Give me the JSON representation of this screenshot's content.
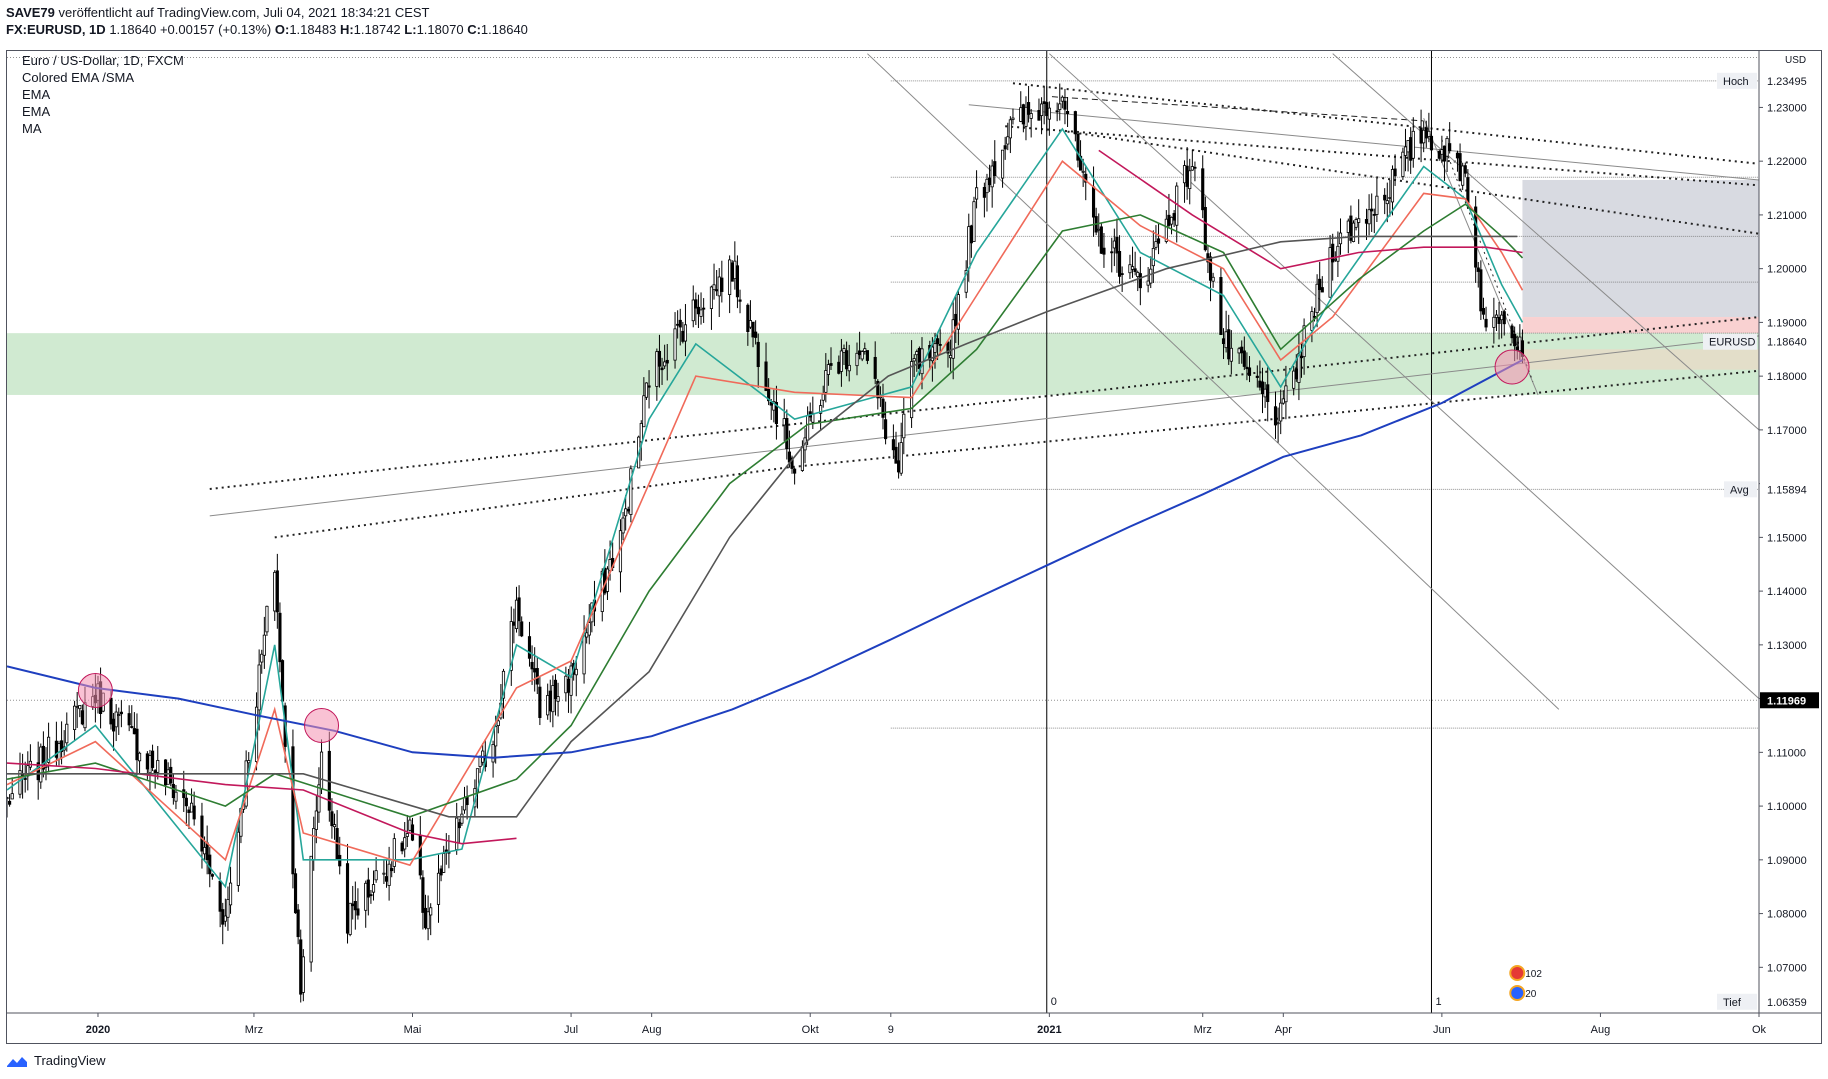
{
  "header": {
    "publisher": "SAVE79",
    "published_text": "veröffentlicht auf TradingView.com, Juli 04, 2021 18:34:21 CEST",
    "symbol": "FX:EURUSD, 1D",
    "last": "1.18640",
    "change": "+0.00157 (+0.13%)",
    "o_label": "O:",
    "o": "1.18483",
    "h_label": "H:",
    "h": "1.18742",
    "l_label": "L:",
    "l": "1.18070",
    "c_label": "C:",
    "c": "1.18640"
  },
  "legend": {
    "title": "Euro / US-Dollar, 1D, FXCM",
    "indicators": [
      "Colored EMA /SMA",
      "EMA",
      "EMA",
      "MA"
    ]
  },
  "footer": {
    "brand": "TradingView"
  },
  "colors": {
    "bull_candle": "#ffffff",
    "bear_candle": "#000000",
    "ema_teal": "#26a69a",
    "ema_salmon": "#f06a5a",
    "ema_green": "#2e7d32",
    "sma_crimson": "#c2185b",
    "sma_gray": "#555555",
    "sma_blue": "#1e3fbf",
    "zone_green": "#c8e6c9",
    "zone_gray": "#d1d4dc",
    "zone_red": "#f8c9c9",
    "highlight_circle": "#f48fb1"
  },
  "chart_data": {
    "type": "candlestick",
    "symbol": "EURUSD",
    "timeframe": "1D",
    "currency": "USD",
    "ylim": [
      1.0615,
      1.2405
    ],
    "y_ticks": [
      1.07,
      1.08,
      1.09,
      1.1,
      1.11,
      1.12,
      1.13,
      1.14,
      1.15,
      1.16,
      1.17,
      1.18,
      1.19,
      1.2,
      1.21,
      1.22,
      1.23
    ],
    "y_tick_labels": [
      "1.07000",
      "1.08000",
      "1.09000",
      "1.10000",
      "1.11000",
      "",
      "1.13000",
      "1.14000",
      "1.15000",
      "",
      "1.17000",
      "1.18000",
      "1.19000",
      "1.20000",
      "1.21000",
      "1.22000",
      "1.23000"
    ],
    "x_range": [
      "2019-11-27",
      "2021-10-01"
    ],
    "x_ticks": [
      {
        "date": "2020-01-01",
        "label": "2020"
      },
      {
        "date": "2020-03-01",
        "label": "Mrz"
      },
      {
        "date": "2020-05-01",
        "label": "Mai"
      },
      {
        "date": "2020-07-01",
        "label": "Jul"
      },
      {
        "date": "2020-08-01",
        "label": "Aug"
      },
      {
        "date": "2020-10-01",
        "label": "Okt"
      },
      {
        "date": "2020-11-01",
        "label": "9"
      },
      {
        "date": "2021-01-01",
        "label": "2021"
      },
      {
        "date": "2021-03-01",
        "label": "Mrz"
      },
      {
        "date": "2021-04-01",
        "label": "Apr"
      },
      {
        "date": "2021-06-01",
        "label": "Jun"
      },
      {
        "date": "2021-08-01",
        "label": "Aug"
      },
      {
        "date": "2021-10-01",
        "label": "Ok"
      }
    ],
    "price_labels": [
      {
        "label": "Hoch",
        "value": "1.23495",
        "y": 1.23495
      },
      {
        "label": "EURUSD",
        "value": "1.18640",
        "y": 1.1864
      },
      {
        "label": "Avg",
        "value": "1.15894",
        "y": 1.15894
      },
      {
        "label": "",
        "value": "1.11969",
        "y": 1.11969
      },
      {
        "label": "Tief",
        "value": "1.06359",
        "y": 1.06359
      }
    ],
    "session_markers": [
      {
        "date": "2020-12-31",
        "label": "0"
      },
      {
        "date": "2021-05-28",
        "label": "1"
      }
    ],
    "event_badges": [
      "102",
      "20"
    ],
    "close_anchors": [
      [
        "2019-11-27",
        1.101
      ],
      [
        "2019-12-10",
        1.108
      ],
      [
        "2019-12-31",
        1.121
      ],
      [
        "2020-01-20",
        1.109
      ],
      [
        "2020-02-05",
        1.1
      ],
      [
        "2020-02-19",
        1.079
      ],
      [
        "2020-03-09",
        1.145
      ],
      [
        "2020-03-13",
        1.11
      ],
      [
        "2020-03-19",
        1.068
      ],
      [
        "2020-03-27",
        1.11
      ],
      [
        "2020-04-06",
        1.079
      ],
      [
        "2020-04-30",
        1.095
      ],
      [
        "2020-05-06",
        1.079
      ],
      [
        "2020-05-20",
        1.098
      ],
      [
        "2020-06-01",
        1.113
      ],
      [
        "2020-06-10",
        1.138
      ],
      [
        "2020-06-19",
        1.118
      ],
      [
        "2020-07-01",
        1.124
      ],
      [
        "2020-07-21",
        1.152
      ],
      [
        "2020-07-31",
        1.18
      ],
      [
        "2020-08-18",
        1.193
      ],
      [
        "2020-09-01",
        1.2
      ],
      [
        "2020-09-25",
        1.163
      ],
      [
        "2020-10-09",
        1.182
      ],
      [
        "2020-10-21",
        1.186
      ],
      [
        "2020-11-04",
        1.162
      ],
      [
        "2020-11-09",
        1.182
      ],
      [
        "2020-11-23",
        1.184
      ],
      [
        "2020-12-04",
        1.213
      ],
      [
        "2020-12-17",
        1.226
      ],
      [
        "2021-01-06",
        1.233
      ],
      [
        "2021-01-18",
        1.207
      ],
      [
        "2021-02-05",
        1.197
      ],
      [
        "2021-02-25",
        1.22
      ],
      [
        "2021-03-09",
        1.186
      ],
      [
        "2021-03-31",
        1.172
      ],
      [
        "2021-04-20",
        1.204
      ],
      [
        "2021-05-10",
        1.214
      ],
      [
        "2021-05-25",
        1.226
      ],
      [
        "2021-06-10",
        1.218
      ],
      [
        "2021-06-18",
        1.187
      ],
      [
        "2021-06-24",
        1.193
      ],
      [
        "2021-07-02",
        1.186
      ]
    ],
    "overlays": [
      {
        "name": "EMA",
        "color": "#26a69a",
        "points": [
          [
            "2019-11-27",
            1.103
          ],
          [
            "2019-12-31",
            1.115
          ],
          [
            "2020-02-19",
            1.085
          ],
          [
            "2020-03-09",
            1.13
          ],
          [
            "2020-03-20",
            1.09
          ],
          [
            "2020-04-30",
            1.09
          ],
          [
            "2020-05-20",
            1.092
          ],
          [
            "2020-06-10",
            1.13
          ],
          [
            "2020-07-01",
            1.124
          ],
          [
            "2020-07-31",
            1.172
          ],
          [
            "2020-08-18",
            1.186
          ],
          [
            "2020-09-25",
            1.172
          ],
          [
            "2020-11-09",
            1.178
          ],
          [
            "2020-12-04",
            1.203
          ],
          [
            "2021-01-06",
            1.226
          ],
          [
            "2021-02-05",
            1.203
          ],
          [
            "2021-03-09",
            1.195
          ],
          [
            "2021-03-31",
            1.178
          ],
          [
            "2021-04-20",
            1.195
          ],
          [
            "2021-05-25",
            1.219
          ],
          [
            "2021-06-10",
            1.213
          ],
          [
            "2021-06-24",
            1.197
          ],
          [
            "2021-07-02",
            1.19
          ]
        ]
      },
      {
        "name": "EMA",
        "color": "#f06a5a",
        "points": [
          [
            "2019-11-27",
            1.104
          ],
          [
            "2019-12-31",
            1.112
          ],
          [
            "2020-02-19",
            1.09
          ],
          [
            "2020-03-09",
            1.118
          ],
          [
            "2020-03-20",
            1.095
          ],
          [
            "2020-04-30",
            1.089
          ],
          [
            "2020-06-10",
            1.122
          ],
          [
            "2020-07-01",
            1.127
          ],
          [
            "2020-07-31",
            1.16
          ],
          [
            "2020-08-18",
            1.18
          ],
          [
            "2020-09-25",
            1.177
          ],
          [
            "2020-11-09",
            1.176
          ],
          [
            "2020-12-04",
            1.195
          ],
          [
            "2021-01-06",
            1.22
          ],
          [
            "2021-02-05",
            1.208
          ],
          [
            "2021-03-09",
            1.2
          ],
          [
            "2021-03-31",
            1.183
          ],
          [
            "2021-04-20",
            1.191
          ],
          [
            "2021-05-25",
            1.214
          ],
          [
            "2021-06-10",
            1.213
          ],
          [
            "2021-06-24",
            1.203
          ],
          [
            "2021-07-02",
            1.196
          ]
        ]
      },
      {
        "name": "EMA",
        "color": "#2e7d32",
        "points": [
          [
            "2019-11-27",
            1.105
          ],
          [
            "2019-12-31",
            1.108
          ],
          [
            "2020-02-19",
            1.1
          ],
          [
            "2020-03-09",
            1.106
          ],
          [
            "2020-04-30",
            1.098
          ],
          [
            "2020-06-10",
            1.105
          ],
          [
            "2020-07-01",
            1.115
          ],
          [
            "2020-07-31",
            1.14
          ],
          [
            "2020-08-31",
            1.16
          ],
          [
            "2020-09-30",
            1.171
          ],
          [
            "2020-11-09",
            1.174
          ],
          [
            "2020-12-04",
            1.185
          ],
          [
            "2021-01-06",
            1.207
          ],
          [
            "2021-02-05",
            1.21
          ],
          [
            "2021-03-09",
            1.203
          ],
          [
            "2021-03-31",
            1.185
          ],
          [
            "2021-04-30",
            1.198
          ],
          [
            "2021-05-25",
            1.207
          ],
          [
            "2021-06-10",
            1.212
          ],
          [
            "2021-06-24",
            1.206
          ],
          [
            "2021-07-02",
            1.202
          ]
        ]
      },
      {
        "name": "MA",
        "color": "#c2185b",
        "points": [
          [
            "2019-11-27",
            1.108
          ],
          [
            "2019-12-31",
            1.107
          ],
          [
            "2020-02-19",
            1.104
          ],
          [
            "2020-03-20",
            1.103
          ],
          [
            "2020-04-30",
            1.095
          ],
          [
            "2020-05-20",
            1.093
          ],
          [
            "2020-06-10",
            1.094
          ]
        ]
      },
      {
        "name": "MA",
        "color": "#c2185b",
        "points": [
          [
            "2021-01-20",
            1.222
          ],
          [
            "2021-02-25",
            1.21
          ],
          [
            "2021-03-31",
            1.2
          ],
          [
            "2021-04-30",
            1.203
          ],
          [
            "2021-05-25",
            1.204
          ],
          [
            "2021-06-18",
            1.204
          ],
          [
            "2021-07-02",
            1.203
          ]
        ]
      },
      {
        "name": "MA",
        "color": "#555555",
        "points": [
          [
            "2019-11-27",
            1.106
          ],
          [
            "2020-01-31",
            1.106
          ],
          [
            "2020-03-20",
            1.106
          ],
          [
            "2020-05-15",
            1.098
          ],
          [
            "2020-06-10",
            1.098
          ],
          [
            "2020-07-01",
            1.112
          ],
          [
            "2020-07-31",
            1.125
          ],
          [
            "2020-08-31",
            1.15
          ],
          [
            "2020-09-30",
            1.168
          ],
          [
            "2020-10-31",
            1.18
          ],
          [
            "2020-11-30",
            1.186
          ],
          [
            "2020-12-31",
            1.192
          ],
          [
            "2021-02-15",
            1.2
          ],
          [
            "2021-03-31",
            1.205
          ],
          [
            "2021-04-30",
            1.206
          ],
          [
            "2021-05-31",
            1.206
          ],
          [
            "2021-06-30",
            1.206
          ]
        ]
      },
      {
        "name": "MA",
        "color": "#1e3fbf",
        "points": [
          [
            "2019-11-27",
            1.126
          ],
          [
            "2019-12-31",
            1.122
          ],
          [
            "2020-02-01",
            1.12
          ],
          [
            "2020-03-01",
            1.117
          ],
          [
            "2020-04-01",
            1.114
          ],
          [
            "2020-05-01",
            1.11
          ],
          [
            "2020-06-01",
            1.109
          ],
          [
            "2020-07-01",
            1.11
          ],
          [
            "2020-08-01",
            1.113
          ],
          [
            "2020-09-01",
            1.118
          ],
          [
            "2020-10-01",
            1.124
          ],
          [
            "2020-11-01",
            1.131
          ],
          [
            "2020-12-01",
            1.138
          ],
          [
            "2021-01-01",
            1.145
          ],
          [
            "2021-02-01",
            1.152
          ],
          [
            "2021-03-01",
            1.158
          ],
          [
            "2021-04-01",
            1.165
          ],
          [
            "2021-05-01",
            1.169
          ],
          [
            "2021-06-01",
            1.175
          ],
          [
            "2021-07-02",
            1.183
          ]
        ]
      }
    ],
    "zones": [
      {
        "name": "green-zone",
        "x0": "2019-11-27",
        "x1": "2021-10-01",
        "y0": 1.1765,
        "y1": 1.188,
        "color": "#c8e6c9"
      },
      {
        "name": "gray-zone",
        "x0": "2021-07-02",
        "x1": "2021-10-01",
        "y0": 1.191,
        "y1": 1.2165,
        "color": "#d1d4dc"
      },
      {
        "name": "red-zone",
        "x0": "2021-07-02",
        "x1": "2021-10-01",
        "y0": 1.188,
        "y1": 1.191,
        "color": "#f8c9c9"
      },
      {
        "name": "tan-zone",
        "x0": "2021-07-02",
        "x1": "2021-10-01",
        "y0": 1.1812,
        "y1": 1.185,
        "color": "#e6dcc8"
      }
    ],
    "trendlines": [
      {
        "style": "dotted",
        "w": 2,
        "a": [
          "2020-03-09",
          1.15
        ],
        "b": [
          "2020-09-22",
          1.163
        ]
      },
      {
        "style": "dotted",
        "w": 2,
        "a": [
          "2020-02-13",
          1.159
        ],
        "b": [
          "2021-10-01",
          1.191
        ]
      },
      {
        "style": "thin",
        "w": 1,
        "a": [
          "2020-02-13",
          1.154
        ],
        "b": [
          "2021-10-01",
          1.1875
        ]
      },
      {
        "style": "dotted",
        "w": 2,
        "a": [
          "2020-09-22",
          1.163
        ],
        "b": [
          "2021-10-01",
          1.181
        ]
      },
      {
        "style": "dotted",
        "w": 2,
        "a": [
          "2020-12-18",
          1.2345
        ],
        "b": [
          "2021-10-01",
          1.2195
        ]
      },
      {
        "style": "dotted",
        "w": 2,
        "a": [
          "2020-12-15",
          1.2265
        ],
        "b": [
          "2021-10-01",
          1.2155
        ]
      },
      {
        "style": "dotted",
        "w": 2,
        "a": [
          "2021-01-08",
          1.2255
        ],
        "b": [
          "2021-10-01",
          1.2065
        ]
      },
      {
        "style": "thin",
        "w": 1,
        "a": [
          "2020-12-01",
          1.2305
        ],
        "b": [
          "2021-10-01",
          1.2165
        ]
      },
      {
        "style": "dashed",
        "w": 1,
        "a": [
          "2021-01-02",
          1.232
        ],
        "b": [
          "2021-05-25",
          1.2275
        ]
      },
      {
        "style": "thin",
        "w": 1,
        "a": [
          "2020-10-23",
          1.24
        ],
        "b": [
          "2021-07-16",
          1.118
        ]
      },
      {
        "style": "thin",
        "w": 1,
        "a": [
          "2021-01-01",
          1.24
        ],
        "b": [
          "2021-10-01",
          1.12
        ]
      },
      {
        "style": "thin",
        "w": 1,
        "a": [
          "2021-04-20",
          1.24
        ],
        "b": [
          "2021-10-01",
          1.17
        ]
      },
      {
        "style": "thin",
        "w": 1,
        "a": [
          "2021-05-25",
          1.228
        ],
        "b": [
          "2021-07-08",
          1.1765
        ]
      },
      {
        "style": "dotted",
        "w": 1,
        "a": [
          "2021-06-01",
          1.224
        ],
        "b": [
          "2021-07-06",
          1.179
        ]
      }
    ],
    "h_levels": [
      {
        "y": 1.23495,
        "x0": "2020-11-01",
        "style": "thin"
      },
      {
        "y": 1.217,
        "x0": "2020-11-01",
        "style": "thin"
      },
      {
        "y": 1.206,
        "x0": "2020-11-01",
        "style": "thin"
      },
      {
        "y": 1.1975,
        "x0": "2020-11-01",
        "style": "thin"
      },
      {
        "y": 1.188,
        "x0": "2020-11-01",
        "style": "thin"
      },
      {
        "y": 1.15894,
        "x0": "2020-11-01",
        "style": "thin"
      },
      {
        "y": 1.1145,
        "x0": "2020-11-01",
        "style": "thin"
      },
      {
        "y": 1.11969,
        "x0": "2019-11-27",
        "style": "dotted"
      },
      {
        "y": 1.2393,
        "x0": "2019-11-27",
        "style": "dotted"
      }
    ],
    "circles": [
      {
        "date": "2019-12-31",
        "y": 1.1215
      },
      {
        "date": "2020-03-27",
        "y": 1.115
      },
      {
        "date": "2021-06-28",
        "y": 1.1817
      }
    ]
  }
}
